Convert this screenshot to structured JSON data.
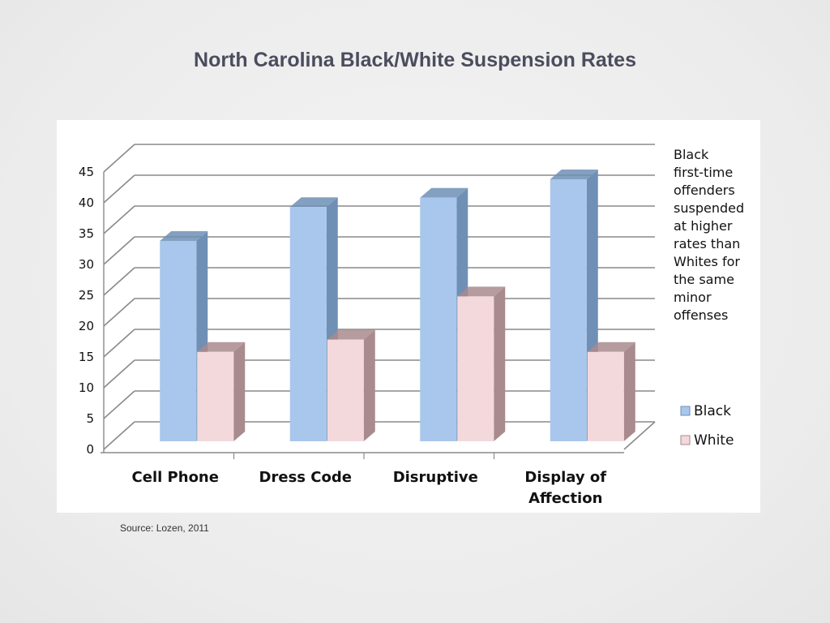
{
  "slide": {
    "title": "North Carolina Black/White Suspension Rates",
    "source": "Source: Lozen, 2011"
  },
  "chart_data": {
    "type": "bar",
    "style": "3d-clustered-column",
    "categories": [
      "Cell Phone",
      "Dress Code",
      "Disruptive",
      "Display of Affection"
    ],
    "series": [
      {
        "name": "Black",
        "values": [
          32.5,
          38,
          39.5,
          42.5
        ],
        "color": "#a9c7ec",
        "side_color": "#6f8fb5"
      },
      {
        "name": "White",
        "values": [
          14.5,
          16.5,
          23.5,
          14.5
        ],
        "color": "#f4d9dc",
        "side_color": "#a98a8e"
      }
    ],
    "ylim": [
      0,
      45
    ],
    "yticks": [
      0,
      5,
      10,
      15,
      20,
      25,
      30,
      35,
      40,
      45
    ],
    "grid": true,
    "legend": "right",
    "annotation": [
      "Black",
      "first-time",
      "offenders",
      "suspended",
      "at higher",
      "rates than",
      "Whites for",
      "the same",
      "minor",
      "offenses"
    ]
  }
}
